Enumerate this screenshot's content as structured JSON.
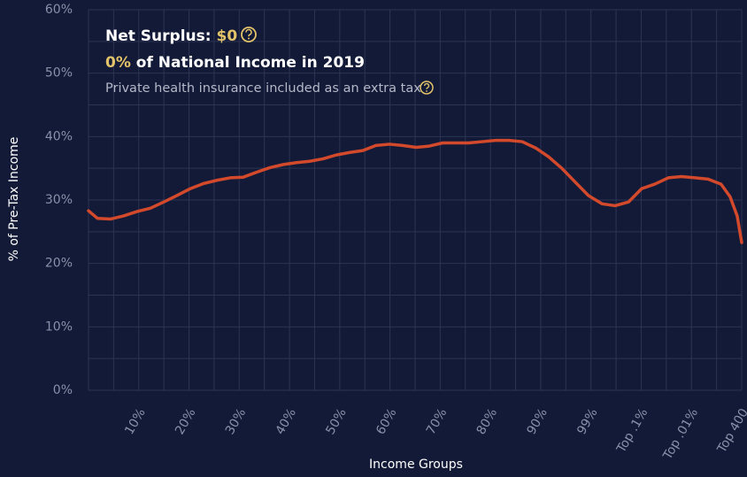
{
  "chart_data": {
    "type": "line",
    "xlabel": "Income Groups",
    "ylabel": "% of Pre-Tax Income",
    "annotations": {
      "surplus_label": "Net Surplus:",
      "surplus_value": "$0",
      "income_share": "0%",
      "income_text": "of National Income in 2019",
      "note": "Private health insurance included as an extra tax"
    },
    "xlim": [
      0,
      13
    ],
    "xticks": [
      {
        "value": 1,
        "label": "10%"
      },
      {
        "value": 2,
        "label": "20%"
      },
      {
        "value": 3,
        "label": "30%"
      },
      {
        "value": 4,
        "label": "40%"
      },
      {
        "value": 5,
        "label": "50%"
      },
      {
        "value": 6,
        "label": "60%"
      },
      {
        "value": 7,
        "label": "70%"
      },
      {
        "value": 8,
        "label": "80%"
      },
      {
        "value": 9,
        "label": "90%"
      },
      {
        "value": 10,
        "label": "99%"
      },
      {
        "value": 11,
        "label": "Top .1%"
      },
      {
        "value": 12,
        "label": "Top .01%"
      },
      {
        "value": 13,
        "label": "Top 400"
      }
    ],
    "xminor": [
      0.5,
      1.5,
      2.5,
      3.5,
      4.5,
      5.5,
      6.5,
      7.5,
      8.5,
      9.5,
      10.5,
      11.5,
      12.5
    ],
    "ylim": [
      0,
      60
    ],
    "yticks": [
      {
        "value": 0,
        "label": "0%"
      },
      {
        "value": 10,
        "label": "10%"
      },
      {
        "value": 20,
        "label": "20%"
      },
      {
        "value": 30,
        "label": "30%"
      },
      {
        "value": 40,
        "label": "40%"
      },
      {
        "value": 50,
        "label": "50%"
      },
      {
        "value": 60,
        "label": "60%"
      }
    ],
    "yminor": [
      5,
      15,
      25,
      35,
      45,
      55
    ],
    "grid": true,
    "series": [
      {
        "color": "#d2492b",
        "x": [
          0,
          0.18,
          0.44,
          0.7,
          0.97,
          1.23,
          1.5,
          1.76,
          2.03,
          2.29,
          2.55,
          2.82,
          3.08,
          3.35,
          3.61,
          3.88,
          4.14,
          4.4,
          4.67,
          4.93,
          5.2,
          5.46,
          5.72,
          5.99,
          6.25,
          6.52,
          6.78,
          7.05,
          7.31,
          7.57,
          7.84,
          8.1,
          8.37,
          8.63,
          8.9,
          9.16,
          9.42,
          9.69,
          9.95,
          10.22,
          10.48,
          10.75,
          11.01,
          11.27,
          11.54,
          11.8,
          12.07,
          12.33,
          12.59,
          12.77,
          12.91,
          13
        ],
        "values": [
          28.3,
          27.1,
          27.0,
          27.5,
          28.2,
          28.7,
          29.7,
          30.7,
          31.8,
          32.6,
          33.1,
          33.5,
          33.6,
          34.4,
          35.1,
          35.6,
          35.9,
          36.1,
          36.5,
          37.1,
          37.5,
          37.8,
          38.6,
          38.8,
          38.6,
          38.3,
          38.5,
          39.0,
          39.0,
          39.0,
          39.2,
          39.4,
          39.4,
          39.2,
          38.2,
          36.8,
          35.0,
          32.8,
          30.7,
          29.4,
          29.1,
          29.7,
          31.8,
          32.5,
          33.5,
          33.7,
          33.5,
          33.3,
          32.5,
          30.5,
          27.5,
          23.3
        ]
      }
    ]
  }
}
